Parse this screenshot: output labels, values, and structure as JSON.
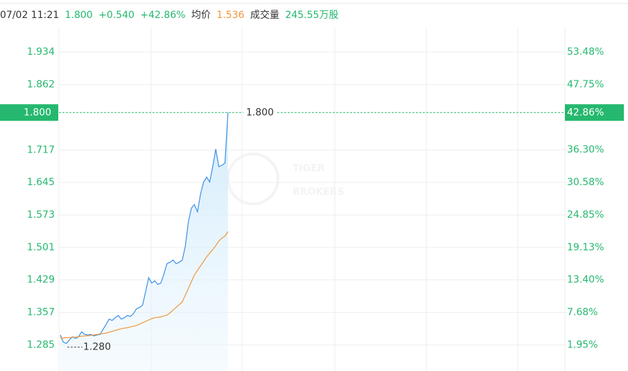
{
  "chart_data": {
    "type": "line",
    "header": {
      "time": "07/02 11:21",
      "price": "1.800",
      "change": "+0.540",
      "change_pct": "+42.86%",
      "avg_label": "均价",
      "avg": "1.536",
      "volume_label": "成交量",
      "volume": "245.55万股"
    },
    "watermark": [
      "TIGER",
      "BROKERS"
    ],
    "series": [
      {
        "name": "price",
        "color": "#3a8ee6",
        "values": [
          1.307,
          1.291,
          1.288,
          1.296,
          1.303,
          1.299,
          1.303,
          1.314,
          1.308,
          1.307,
          1.308,
          1.305,
          1.307,
          1.308,
          1.319,
          1.33,
          1.342,
          1.339,
          1.345,
          1.35,
          1.342,
          1.345,
          1.35,
          1.348,
          1.354,
          1.365,
          1.368,
          1.373,
          1.403,
          1.434,
          1.422,
          1.427,
          1.419,
          1.422,
          1.442,
          1.465,
          1.468,
          1.473,
          1.465,
          1.468,
          1.473,
          1.503,
          1.557,
          1.588,
          1.596,
          1.58,
          1.619,
          1.646,
          1.657,
          1.646,
          1.68,
          1.719,
          1.68,
          1.683,
          1.688,
          1.8
        ]
      },
      {
        "name": "average",
        "color": "#f0953a",
        "values": [
          1.3,
          1.3,
          1.301,
          1.301,
          1.302,
          1.302,
          1.303,
          1.304,
          1.305,
          1.305,
          1.306,
          1.307,
          1.308,
          1.309,
          1.31,
          1.311,
          1.313,
          1.315,
          1.317,
          1.319,
          1.321,
          1.322,
          1.323,
          1.325,
          1.326,
          1.328,
          1.331,
          1.334,
          1.337,
          1.34,
          1.343,
          1.345,
          1.346,
          1.347,
          1.349,
          1.351,
          1.356,
          1.362,
          1.368,
          1.374,
          1.38,
          1.395,
          1.41,
          1.425,
          1.44,
          1.45,
          1.46,
          1.47,
          1.48,
          1.488,
          1.496,
          1.505,
          1.515,
          1.522,
          1.526,
          1.536
        ]
      }
    ],
    "ylim": [
      1.227,
      1.988
    ],
    "yticks": [
      1.285,
      1.357,
      1.429,
      1.501,
      1.573,
      1.645,
      1.717,
      1.862,
      1.934
    ],
    "y2lim": [
      -2.62,
      57.78
    ],
    "y2ticks": [
      {
        "value": 1.95,
        "label": "1.95%"
      },
      {
        "value": 7.68,
        "label": "7.68%"
      },
      {
        "value": 13.4,
        "label": "13.40%"
      },
      {
        "value": 19.13,
        "label": "19.13%"
      },
      {
        "value": 24.85,
        "label": "24.85%"
      },
      {
        "value": 30.58,
        "label": "30.58%"
      },
      {
        "value": 36.3,
        "label": "36.30%"
      },
      {
        "value": 47.75,
        "label": "47.75%"
      },
      {
        "value": 53.48,
        "label": "53.48%"
      }
    ],
    "last_price": {
      "value": 1.8,
      "label": "1.800"
    },
    "last_pct": {
      "value": 42.86,
      "label": "42.86%"
    },
    "low": {
      "value": 1.28,
      "label": "1.280"
    },
    "grid": true
  }
}
